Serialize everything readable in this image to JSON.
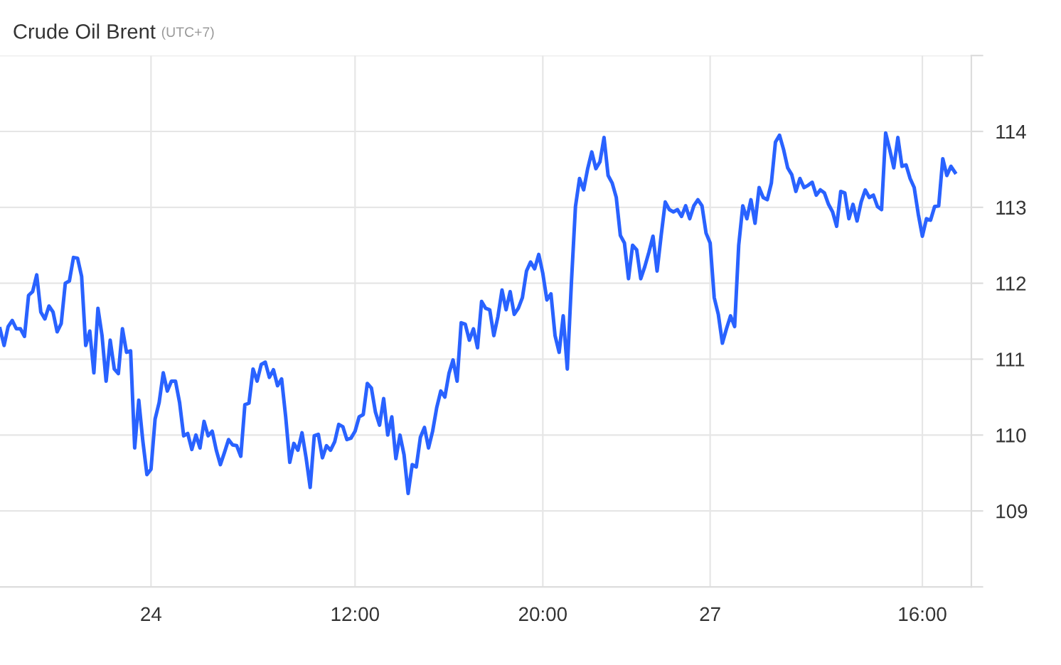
{
  "chart_data": {
    "type": "line",
    "title": "Crude Oil Brent",
    "subtitle": "(UTC+7)",
    "categories": [
      null,
      null,
      null,
      null,
      null,
      null,
      null,
      null,
      null,
      null,
      null,
      null,
      null,
      null,
      null,
      null,
      null,
      null,
      null,
      null,
      null,
      null,
      null,
      null,
      null,
      null,
      null,
      null,
      null,
      null,
      null,
      null,
      null,
      null,
      null,
      null,
      null,
      "24",
      null,
      null,
      null,
      null,
      null,
      null,
      null,
      null,
      null,
      null,
      null,
      null,
      null,
      null,
      null,
      null,
      null,
      null,
      null,
      null,
      null,
      null,
      null,
      null,
      null,
      null,
      null,
      null,
      null,
      null,
      null,
      null,
      null,
      null,
      null,
      null,
      null,
      null,
      null,
      null,
      null,
      null,
      null,
      null,
      null,
      null,
      null,
      null,
      null,
      "12:00",
      null,
      null,
      null,
      null,
      null,
      null,
      null,
      null,
      null,
      null,
      null,
      null,
      null,
      null,
      null,
      null,
      null,
      null,
      null,
      null,
      null,
      null,
      null,
      null,
      null,
      null,
      null,
      null,
      null,
      null,
      null,
      null,
      null,
      null,
      null,
      null,
      null,
      null,
      null,
      null,
      null,
      null,
      null,
      null,
      null,
      "20:00",
      null,
      null,
      null,
      null,
      null,
      null,
      null,
      null,
      null,
      null,
      null,
      null,
      null,
      null,
      null,
      null,
      null,
      null,
      null,
      null,
      null,
      null,
      null,
      null,
      null,
      null,
      null,
      null,
      null,
      null,
      null,
      null,
      null,
      null,
      null,
      null,
      null,
      null,
      null,
      null,
      "27",
      null,
      null,
      null,
      null,
      null,
      null,
      null,
      null,
      null,
      null,
      null,
      null,
      null,
      null,
      null,
      null,
      null,
      null,
      null,
      null,
      null,
      null,
      null,
      null,
      null,
      null,
      null,
      null,
      null,
      null,
      null,
      null,
      null,
      null,
      null,
      null,
      null,
      null,
      null,
      null,
      null,
      null,
      null,
      null,
      null,
      null,
      null,
      null,
      null,
      null,
      null,
      "16:00",
      null,
      null,
      null,
      null,
      null,
      null,
      null,
      null
    ],
    "series": [
      {
        "color": "#2962ff",
        "values": [
          111.4,
          111.18,
          111.43,
          111.51,
          111.4,
          111.4,
          111.3,
          111.84,
          111.89,
          112.11,
          111.62,
          111.53,
          111.7,
          111.62,
          111.36,
          111.47,
          112.0,
          112.03,
          112.34,
          112.33,
          112.09,
          111.18,
          111.37,
          110.82,
          111.67,
          111.31,
          110.71,
          111.25,
          110.87,
          110.81,
          111.4,
          111.09,
          111.11,
          109.83,
          110.46,
          109.92,
          109.48,
          109.55,
          110.21,
          110.43,
          110.82,
          110.58,
          110.71,
          110.71,
          110.43,
          109.99,
          110.02,
          109.81,
          110.0,
          109.83,
          110.18,
          109.99,
          110.05,
          109.8,
          109.61,
          109.77,
          109.94,
          109.87,
          109.86,
          109.72,
          110.4,
          110.42,
          110.87,
          110.71,
          110.93,
          110.96,
          110.76,
          110.86,
          110.65,
          110.74,
          110.24,
          109.64,
          109.89,
          109.8,
          110.03,
          109.7,
          109.31,
          109.99,
          110.01,
          109.7,
          109.86,
          109.8,
          109.91,
          110.14,
          110.11,
          109.94,
          109.96,
          110.05,
          110.24,
          110.27,
          110.68,
          110.62,
          110.3,
          110.13,
          110.48,
          110.0,
          110.24,
          109.69,
          110.0,
          109.74,
          109.23,
          109.61,
          109.58,
          109.97,
          110.1,
          109.83,
          110.05,
          110.36,
          110.58,
          110.5,
          110.81,
          110.99,
          110.71,
          111.48,
          111.46,
          111.25,
          111.4,
          111.15,
          111.76,
          111.67,
          111.65,
          111.31,
          111.56,
          111.91,
          111.65,
          111.89,
          111.59,
          111.67,
          111.81,
          112.16,
          112.28,
          112.19,
          112.38,
          112.13,
          111.78,
          111.86,
          111.31,
          111.09,
          111.57,
          110.87,
          112.0,
          113.01,
          113.38,
          113.23,
          113.51,
          113.73,
          113.51,
          113.6,
          113.92,
          113.42,
          113.32,
          113.13,
          112.63,
          112.53,
          112.06,
          112.5,
          112.44,
          112.06,
          112.22,
          112.41,
          112.62,
          112.16,
          112.63,
          113.07,
          112.97,
          112.94,
          112.97,
          112.88,
          113.02,
          112.85,
          113.02,
          113.1,
          113.02,
          112.66,
          112.53,
          111.81,
          111.59,
          111.21,
          111.4,
          111.57,
          111.43,
          112.5,
          113.02,
          112.85,
          113.1,
          112.79,
          113.26,
          113.13,
          113.1,
          113.32,
          113.86,
          113.95,
          113.76,
          113.52,
          113.43,
          113.21,
          113.38,
          113.26,
          113.29,
          113.33,
          113.16,
          113.23,
          113.19,
          113.04,
          112.94,
          112.75,
          113.21,
          113.19,
          112.85,
          113.04,
          112.82,
          113.07,
          113.23,
          113.13,
          113.16,
          113.01,
          112.97,
          113.98,
          113.76,
          113.52,
          113.92,
          113.54,
          113.56,
          113.38,
          113.26,
          112.91,
          112.62,
          112.85,
          112.83,
          113.01,
          113.02,
          113.64,
          113.42,
          113.54,
          113.46
        ]
      }
    ],
    "ylim": [
      108,
      115
    ],
    "yticks": [
      {
        "value": 108,
        "label": null
      },
      109,
      110,
      111,
      112,
      113,
      114,
      {
        "value": 115,
        "label": null
      }
    ],
    "grid": true,
    "marker": "none",
    "line_style": "solid"
  }
}
